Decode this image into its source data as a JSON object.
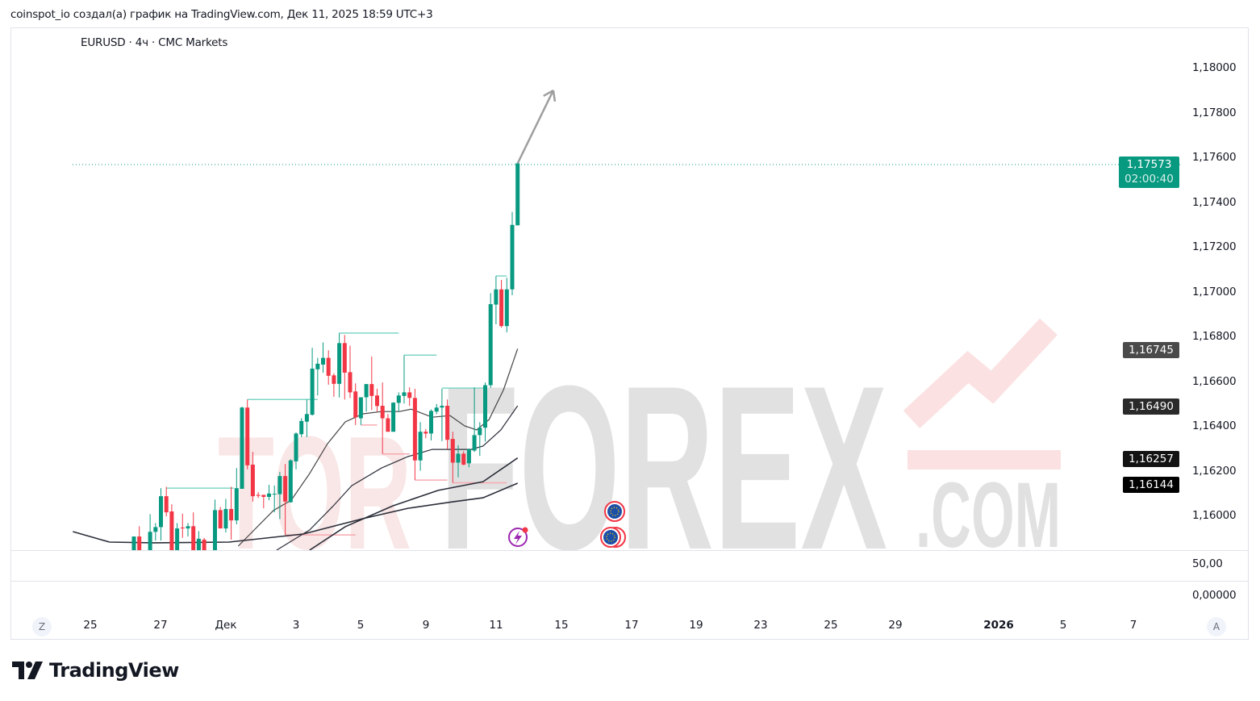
{
  "caption": "coinspot_io создал(а) график на TradingView.com, Дек 11, 2025 18:59 UTC+3",
  "symbol_title": "EURUSD · 4ч · CMC Markets",
  "watermark": {
    "part1": "TOR",
    "part2": "FOREX",
    "part3": ".COM"
  },
  "brand": {
    "logo_text": "TradingView"
  },
  "colors": {
    "up": "#089981",
    "down": "#f23645",
    "ma": "#2a2e39",
    "level_up": "#7fd6c7",
    "level_down": "#f7a9b0",
    "last_price": "#089981"
  },
  "price_axis": {
    "ticks": [
      "1,18000",
      "1,17800",
      "1,17600",
      "1,17400",
      "1,17200",
      "1,17000",
      "1,16800",
      "1,16600",
      "1,16400",
      "1,16200",
      "1,16000"
    ],
    "last_price": "1,17573",
    "countdown": "02:00:40",
    "ma_tags": [
      "1,16745",
      "1,16490",
      "1,16257",
      "1,16144"
    ]
  },
  "lower_pane": {
    "ticks": [
      "50,00",
      "0,00000"
    ]
  },
  "time_axis": {
    "z_button": "Z",
    "a_button": "A",
    "labels": [
      "25",
      "27",
      "Дек",
      "3",
      "5",
      "9",
      "11",
      "15",
      "17",
      "19",
      "23",
      "25",
      "29",
      "2026",
      "5",
      "7"
    ]
  },
  "chart_data": {
    "type": "candlestick",
    "symbol": "EURUSD",
    "interval": "4ч",
    "ylim": [
      1.1582,
      1.181
    ],
    "yticks": [
      1.18,
      1.178,
      1.176,
      1.174,
      1.172,
      1.17,
      1.168,
      1.166,
      1.164,
      1.162,
      1.16
    ],
    "candles_ohlc": [
      [
        1.15816,
        1.15906,
        1.158,
        1.15906
      ],
      [
        1.15906,
        1.15952,
        1.158,
        1.15816
      ],
      null,
      [
        1.15816,
        1.16006,
        1.158,
        1.15927
      ],
      [
        1.15927,
        1.15966,
        1.15888,
        1.15948
      ],
      [
        1.15948,
        1.16122,
        1.15888,
        1.16086
      ],
      [
        1.16086,
        1.16128,
        1.15996,
        1.16014
      ],
      [
        1.16018,
        1.1605,
        1.158,
        1.15816
      ],
      [
        1.15816,
        1.15966,
        1.158,
        1.15942
      ],
      [
        1.15946,
        1.16008,
        1.159,
        1.15944
      ],
      [
        1.15942,
        1.15966,
        1.15906,
        1.15952
      ],
      [
        1.15952,
        1.16014,
        1.158,
        1.15816
      ],
      [
        1.15816,
        1.1593,
        1.158,
        1.15896
      ],
      [
        1.15892,
        1.159,
        1.158,
        1.15816
      ],
      null,
      [
        1.15816,
        1.16071,
        1.158,
        1.16024
      ],
      [
        1.16024,
        1.16038,
        1.15942,
        1.15942
      ],
      [
        1.15942,
        1.16074,
        1.15924,
        1.16029
      ],
      [
        1.16029,
        1.16128,
        1.15892,
        1.15978
      ],
      [
        1.15978,
        1.16212,
        1.1596,
        1.16122
      ],
      [
        1.16119,
        1.16486,
        1.16119,
        1.16482
      ],
      [
        1.16482,
        1.16518,
        1.16206,
        1.16224
      ],
      [
        1.16227,
        1.16284,
        1.16062,
        1.16086
      ],
      [
        1.16092,
        1.16104,
        1.16078,
        1.16088
      ],
      [
        1.16092,
        1.16092,
        1.16032,
        1.16083
      ],
      [
        1.16083,
        1.16137,
        1.16068,
        1.16098
      ],
      [
        1.16096,
        1.16134,
        1.16014,
        1.16097
      ],
      [
        1.16095,
        1.16194,
        1.15984,
        1.16176
      ],
      [
        1.16176,
        1.1623,
        1.15913,
        1.16062
      ],
      [
        1.16059,
        1.16251,
        1.16057,
        1.16246
      ],
      [
        1.16242,
        1.16371,
        1.16206,
        1.16366
      ],
      [
        1.16363,
        1.16434,
        1.1635,
        1.16422
      ],
      [
        1.16419,
        1.16518,
        1.1635,
        1.16453
      ],
      [
        1.1645,
        1.16749,
        1.16446,
        1.16656
      ],
      [
        1.16653,
        1.16704,
        1.16536,
        1.16678
      ],
      [
        1.16674,
        1.16773,
        1.16638,
        1.16704
      ],
      [
        1.16704,
        1.16738,
        1.16584,
        1.16624
      ],
      [
        1.16626,
        1.16635,
        1.1653,
        1.16588
      ],
      [
        1.16588,
        1.16815,
        1.16527,
        1.1677
      ],
      [
        1.1677,
        1.16806,
        1.16518,
        1.16638
      ],
      [
        1.1664,
        1.16758,
        1.16525,
        1.1655
      ],
      [
        1.16554,
        1.1659,
        1.16404,
        1.16438
      ],
      [
        1.16434,
        1.16528,
        1.16404,
        1.16528
      ],
      [
        1.16528,
        1.16587,
        1.16464,
        1.16587
      ],
      [
        1.16587,
        1.1671,
        1.16471,
        1.16534
      ],
      [
        1.16536,
        1.16566,
        1.16464,
        1.16489
      ],
      [
        1.1649,
        1.16594,
        1.16275,
        1.16434
      ],
      [
        1.16434,
        1.16453,
        1.16374,
        1.16374
      ],
      [
        1.16374,
        1.16506,
        1.16374,
        1.16504
      ],
      [
        1.16503,
        1.1655,
        1.16464,
        1.16536
      ],
      [
        1.16534,
        1.16716,
        1.165,
        1.1655
      ],
      [
        1.1655,
        1.16572,
        1.16489,
        1.16525
      ],
      [
        1.16525,
        1.16566,
        1.16158,
        1.16246
      ],
      [
        1.16246,
        1.16417,
        1.162,
        1.16374
      ],
      [
        1.16374,
        1.16386,
        1.16345,
        1.16366
      ],
      [
        1.16366,
        1.16474,
        1.16335,
        1.16467
      ],
      [
        1.16464,
        1.16498,
        1.16453,
        1.16482
      ],
      [
        1.16482,
        1.16566,
        1.16332,
        1.1649
      ],
      [
        1.1649,
        1.16518,
        1.16296,
        1.16338
      ],
      [
        1.16342,
        1.16374,
        1.16146,
        1.16236
      ],
      [
        1.16236,
        1.16314,
        1.1617,
        1.16276
      ],
      [
        1.16276,
        1.16287,
        1.16224,
        1.16227
      ],
      [
        1.16233,
        1.16299,
        1.16215,
        1.16296
      ],
      [
        1.1629,
        1.16572,
        1.16284,
        1.16359
      ],
      [
        1.16359,
        1.16417,
        1.16266,
        1.16392
      ],
      [
        1.16392,
        1.16594,
        1.1633,
        1.16582
      ],
      [
        1.16582,
        1.16993,
        1.1657,
        1.16944
      ],
      [
        1.16942,
        1.1707,
        1.16854,
        1.1701
      ],
      [
        1.1701,
        1.17052,
        1.16839,
        1.16846
      ],
      [
        1.16846,
        1.17062,
        1.16818,
        1.1701
      ],
      [
        1.1701,
        1.17356,
        1.16984,
        1.17298
      ],
      [
        1.17296,
        1.17573,
        1.17296,
        1.17573
      ]
    ],
    "moving_averages": [
      {
        "last": 1.16745,
        "points": [
          [
            19.3,
            1.15863
          ],
          [
            25.8,
            1.16022
          ],
          [
            29.1,
            1.16068
          ],
          [
            32.5,
            1.16187
          ],
          [
            35.8,
            1.1632
          ],
          [
            39.1,
            1.16418
          ],
          [
            42.4,
            1.16454
          ],
          [
            45.8,
            1.16464
          ],
          [
            49.1,
            1.16464
          ],
          [
            51.3,
            1.16475
          ],
          [
            55.2,
            1.16439
          ],
          [
            58.5,
            1.16446
          ],
          [
            61.2,
            1.164
          ],
          [
            63.4,
            1.16382
          ],
          [
            65.7,
            1.16428
          ],
          [
            68.4,
            1.16562
          ],
          [
            71,
            1.16745
          ]
        ]
      },
      {
        "last": 1.1649,
        "points": [
          [
            26.4,
            1.15845
          ],
          [
            32.5,
            1.15935
          ],
          [
            36.9,
            1.16043
          ],
          [
            40.3,
            1.16133
          ],
          [
            45.8,
            1.16212
          ],
          [
            50.7,
            1.16263
          ],
          [
            55.2,
            1.16295
          ],
          [
            62.4,
            1.16295
          ],
          [
            64.6,
            1.1631
          ],
          [
            67.9,
            1.16382
          ],
          [
            71,
            1.1649
          ]
        ]
      },
      {
        "last": 1.16257,
        "points": [
          [
            32.5,
            1.15845
          ],
          [
            39.1,
            1.1595
          ],
          [
            47.9,
            1.16043
          ],
          [
            56.3,
            1.16112
          ],
          [
            64.6,
            1.16151
          ],
          [
            71,
            1.16257
          ]
        ]
      },
      {
        "last": 1.16144,
        "points": [
          [
            -11.3,
            1.15928
          ],
          [
            -4.5,
            1.15881
          ],
          [
            3.7,
            1.15878
          ],
          [
            17.6,
            1.15881
          ],
          [
            31.3,
            1.15917
          ],
          [
            42.4,
            1.15986
          ],
          [
            50.7,
            1.16032
          ],
          [
            59,
            1.16061
          ],
          [
            64.6,
            1.16079
          ],
          [
            71,
            1.16144
          ]
        ]
      }
    ],
    "pivot_levels": [
      {
        "kind": "high",
        "from": 6,
        "to": 18.5,
        "price": 1.16122
      },
      {
        "kind": "high",
        "from": 21,
        "to": 34,
        "price": 1.16518
      },
      {
        "kind": "high",
        "from": 38,
        "to": 49,
        "price": 1.16815
      },
      {
        "kind": "high",
        "from": 50,
        "to": 56,
        "price": 1.16716
      },
      {
        "kind": "high",
        "from": 57,
        "to": 65,
        "price": 1.16569
      },
      {
        "kind": "high",
        "from": 67,
        "to": 69,
        "price": 1.1707
      },
      {
        "kind": "low",
        "from": 28,
        "to": 41,
        "price": 1.15913
      },
      {
        "kind": "low",
        "from": 42,
        "to": 45,
        "price": 1.16404
      },
      {
        "kind": "low",
        "from": 46,
        "to": 51,
        "price": 1.16275
      },
      {
        "kind": "low",
        "from": 52,
        "to": 58,
        "price": 1.16158
      },
      {
        "kind": "low",
        "from": 59,
        "to": 69,
        "price": 1.16146
      }
    ],
    "last_price": 1.17573,
    "arrow_annotation": {
      "from": [
        71,
        1.17573
      ],
      "to": [
        77.6,
        1.17899
      ]
    }
  }
}
